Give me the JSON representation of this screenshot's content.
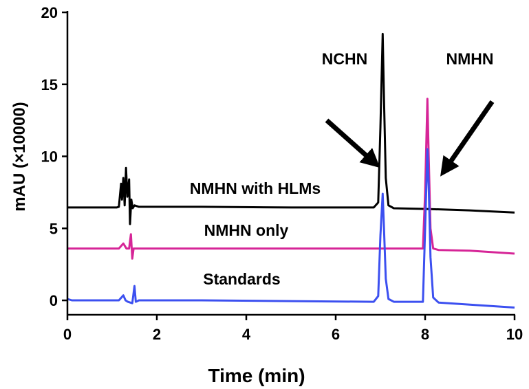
{
  "chart_data": {
    "type": "line",
    "title": "",
    "xlabel": "Time (min)",
    "ylabel": "mAU (×10000)",
    "xlim": [
      0,
      10
    ],
    "ylim": [
      -1,
      20
    ],
    "xticks": [
      "0",
      "2",
      "4",
      "6",
      "8",
      "10"
    ],
    "yticks": [
      "0",
      "5",
      "10",
      "15",
      "20"
    ],
    "grid": false,
    "legend": "none",
    "series": [
      {
        "name": "NMHN with HLMs",
        "color": "#000000",
        "x": [
          0,
          1.1,
          1.15,
          1.2,
          1.22,
          1.25,
          1.28,
          1.31,
          1.34,
          1.38,
          1.4,
          1.43,
          1.46,
          1.5,
          1.6,
          3,
          5,
          6.85,
          6.95,
          7.0,
          7.05,
          7.08,
          7.12,
          7.18,
          7.3,
          8,
          9,
          10
        ],
        "y": [
          6.45,
          6.45,
          6.5,
          8.1,
          7.0,
          8.5,
          6.6,
          9.2,
          7.2,
          8.4,
          5.3,
          7.0,
          6.4,
          6.6,
          6.5,
          6.5,
          6.45,
          6.45,
          6.8,
          12.0,
          18.5,
          14.0,
          8.5,
          6.6,
          6.4,
          6.35,
          6.25,
          6.1
        ]
      },
      {
        "name": "NMHN only",
        "color": "#d62597",
        "x": [
          0,
          1.15,
          1.25,
          1.32,
          1.38,
          1.42,
          1.45,
          1.48,
          1.55,
          3,
          5,
          7,
          7.95,
          8.0,
          8.05,
          8.08,
          8.12,
          8.18,
          8.3,
          9,
          10
        ],
        "y": [
          3.6,
          3.6,
          3.95,
          3.6,
          3.6,
          4.6,
          2.9,
          3.6,
          3.6,
          3.6,
          3.6,
          3.6,
          3.6,
          7.5,
          14.0,
          10.0,
          5.0,
          3.6,
          3.5,
          3.45,
          3.25
        ]
      },
      {
        "name": "Standards",
        "color": "#3c50f0",
        "x": [
          0,
          0.1,
          1.15,
          1.25,
          1.3,
          1.35,
          1.45,
          1.5,
          1.53,
          1.6,
          3,
          5,
          6.85,
          6.95,
          7.0,
          7.05,
          7.08,
          7.12,
          7.18,
          7.3,
          7.95,
          8.0,
          8.05,
          8.08,
          8.12,
          8.18,
          8.3,
          9,
          10
        ],
        "y": [
          0.1,
          0.0,
          0.0,
          0.35,
          0.0,
          -0.1,
          -0.2,
          1.0,
          -0.1,
          0.0,
          0.0,
          -0.05,
          -0.1,
          0.3,
          4.5,
          7.4,
          5.0,
          1.5,
          0.1,
          -0.1,
          -0.1,
          5.0,
          10.5,
          8.0,
          3.0,
          0.2,
          -0.15,
          -0.3,
          -0.5
        ]
      }
    ],
    "annotations": [
      {
        "name": "trace-label-hlms",
        "text": "NMHN with HLMs",
        "x": 4.2,
        "y": 7.4
      },
      {
        "name": "trace-label-only",
        "text": "NMHN only",
        "x": 4.0,
        "y": 4.5
      },
      {
        "name": "trace-label-standards",
        "text": "Standards",
        "x": 3.9,
        "y": 1.1
      },
      {
        "name": "peak-label-nchn",
        "text": "NCHN",
        "x": 6.2,
        "y": 16.4
      },
      {
        "name": "peak-label-nmhn",
        "text": "NMHN",
        "x": 9.0,
        "y": 16.4
      }
    ],
    "arrows": [
      {
        "name": "nchn-arrow",
        "from": [
          5.8,
          12.5
        ],
        "to": [
          6.85,
          9.6
        ]
      },
      {
        "name": "nmhn-arrow",
        "from": [
          9.5,
          13.8
        ],
        "to": [
          8.45,
          9.1
        ]
      }
    ]
  }
}
